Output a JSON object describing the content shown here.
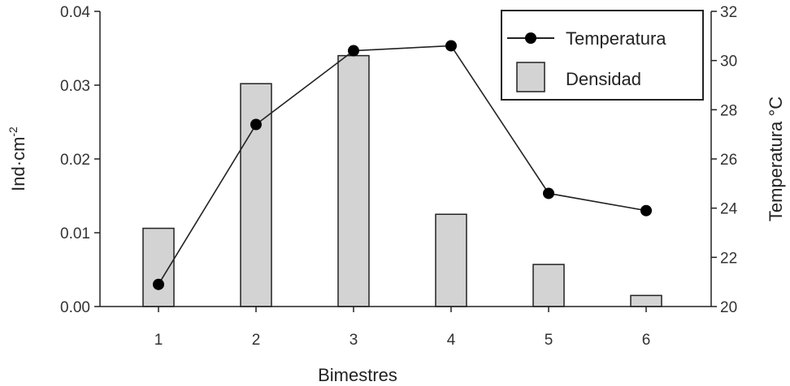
{
  "chart_data": {
    "type": "bar+line",
    "categories": [
      "1",
      "2",
      "3",
      "4",
      "5",
      "6"
    ],
    "series": [
      {
        "name": "Densidad",
        "type": "bar",
        "axis": "left",
        "values": [
          0.0106,
          0.0302,
          0.034,
          0.0125,
          0.0057,
          0.0015
        ]
      },
      {
        "name": "Temperatura",
        "type": "line",
        "axis": "right",
        "values": [
          20.9,
          27.4,
          30.4,
          30.6,
          24.6,
          23.9
        ]
      }
    ],
    "xlabel": "Bimestres",
    "ylabel_left_base": "Ind·cm",
    "ylabel_left_exp": "-2",
    "ylabel_right": "Temperatura °C",
    "ylim_left": [
      0,
      0.04
    ],
    "ylim_right": [
      20,
      32
    ],
    "yticks_left": [
      "0.00",
      "0.01",
      "0.02",
      "0.03",
      "0.04"
    ],
    "yticks_right": [
      "20",
      "22",
      "24",
      "26",
      "28",
      "30",
      "32"
    ],
    "legend": {
      "placement": "top-right",
      "entries": [
        "Temperatura",
        "Densidad"
      ]
    },
    "grid": false,
    "colors": {
      "bar_fill": "#d3d3d3",
      "bar_stroke": "#222222",
      "line": "#222222",
      "marker": "#000000"
    }
  }
}
